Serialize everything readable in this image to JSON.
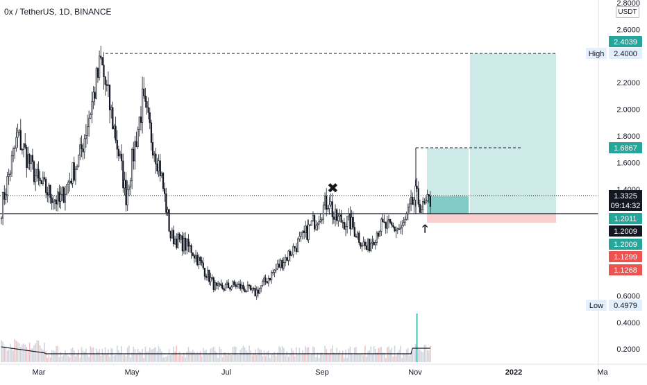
{
  "symbol": {
    "title": "0x / TetherUS, 1D, BINANCE",
    "currency": "USDT"
  },
  "colors": {
    "candle": "#131722",
    "volume": "#d1d4dc",
    "volume_spike": "#26a69a",
    "volume_red": "#ef5350",
    "profit_zone": "#b2dfdb",
    "loss_zone": "#f9cfcf",
    "axis_text": "#131722",
    "label_teal": "#26a69a",
    "label_red": "#ef5350",
    "label_black": "#131722",
    "range_tag_bg": "#e3effd"
  },
  "chart_data": {
    "type": "candlestick",
    "y_axis": {
      "min": 0.0,
      "max": 2.8,
      "ticks": [
        "2.8000",
        "2.6000",
        "2.4000",
        "2.2000",
        "2.0000",
        "1.8000",
        "1.6000",
        "1.4000",
        "0.6000",
        "0.4000",
        "0.2000"
      ]
    },
    "x_axis": {
      "labels": [
        "Mar",
        "May",
        "Jul",
        "Sep",
        "Nov",
        "2022",
        "Ma"
      ]
    },
    "price_path": [
      {
        "date": "2021-01-28",
        "price": 1.26
      },
      {
        "date": "2021-02-08",
        "price": 1.8
      },
      {
        "date": "2021-02-22",
        "price": 1.45
      },
      {
        "date": "2021-03-08",
        "price": 1.3
      },
      {
        "date": "2021-03-22",
        "price": 1.65
      },
      {
        "date": "2021-04-05",
        "price": 2.35
      },
      {
        "date": "2021-04-15",
        "price": 1.8
      },
      {
        "date": "2021-04-22",
        "price": 1.35
      },
      {
        "date": "2021-05-03",
        "price": 2.05
      },
      {
        "date": "2021-05-15",
        "price": 1.55
      },
      {
        "date": "2021-05-22",
        "price": 1.05
      },
      {
        "date": "2021-06-05",
        "price": 0.95
      },
      {
        "date": "2021-06-22",
        "price": 0.65
      },
      {
        "date": "2021-07-05",
        "price": 0.68
      },
      {
        "date": "2021-07-18",
        "price": 0.62
      },
      {
        "date": "2021-08-01",
        "price": 0.8
      },
      {
        "date": "2021-08-20",
        "price": 1.05
      },
      {
        "date": "2021-09-06",
        "price": 1.33
      },
      {
        "date": "2021-09-09",
        "price": 1.18
      },
      {
        "date": "2021-09-20",
        "price": 1.15
      },
      {
        "date": "2021-10-01",
        "price": 0.95
      },
      {
        "date": "2021-10-10",
        "price": 1.12
      },
      {
        "date": "2021-10-25",
        "price": 1.1
      },
      {
        "date": "2021-11-03",
        "price": 1.35
      },
      {
        "date": "2021-11-08",
        "price": 1.25
      },
      {
        "date": "2021-11-14",
        "price": 1.33
      }
    ],
    "annotations": {
      "high": {
        "label": "High",
        "value": "2.4000"
      },
      "low": {
        "label": "Low",
        "value": "0.4979"
      },
      "target_tag": "2.4039",
      "entry_top_tag": "1.6867",
      "last_price": "1.3325",
      "countdown": "09:14:32",
      "level_tags": [
        "1.2011",
        "1.2009",
        "1.2009"
      ],
      "stop_tags": [
        "1.1299",
        "1.1268"
      ],
      "horizontal_line": 1.2009
    }
  }
}
